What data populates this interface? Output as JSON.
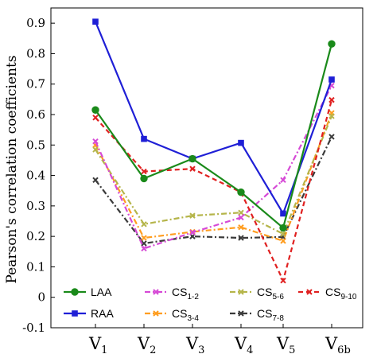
{
  "chart_data": {
    "type": "line",
    "ylabel": "Pearson's correlation coefficients",
    "xlabel": "",
    "categories": [
      {
        "main": "V",
        "sub": "1"
      },
      {
        "main": "V",
        "sub": "2"
      },
      {
        "main": "V",
        "sub": "3"
      },
      {
        "main": "V",
        "sub": "4"
      },
      {
        "main": "V",
        "sub": "5"
      },
      {
        "main": "V",
        "sub": "6b"
      }
    ],
    "ylim": [
      -0.1,
      0.95
    ],
    "yticks": [
      "-0.1",
      "0",
      "0.1",
      "0.2",
      "0.3",
      "0.4",
      "0.5",
      "0.6",
      "0.7",
      "0.8",
      "0.9"
    ],
    "grid": false,
    "legend_position": "bottom",
    "series": [
      {
        "name": "LAA",
        "name_main": "LAA",
        "name_sub": "",
        "color": "#1a8a1a",
        "dash": "solid",
        "marker": "circle",
        "values": [
          0.615,
          0.39,
          0.455,
          0.345,
          0.228,
          0.832
        ]
      },
      {
        "name": "RAA",
        "name_main": "RAA",
        "name_sub": "",
        "color": "#1f1fd6",
        "dash": "solid",
        "marker": "square",
        "values": [
          0.905,
          0.52,
          0.455,
          0.507,
          0.275,
          0.715
        ]
      },
      {
        "name": "CS1-2",
        "name_main": "CS",
        "name_sub": "1-2",
        "color": "#d64ad6",
        "dash": "dashdot",
        "marker": "x",
        "values": [
          0.512,
          0.16,
          0.213,
          0.262,
          0.385,
          0.695
        ]
      },
      {
        "name": "CS3-4",
        "name_main": "CS",
        "name_sub": "3-4",
        "color": "#ff9d1f",
        "dash": "dashdot",
        "marker": "x",
        "values": [
          0.5,
          0.195,
          0.215,
          0.23,
          0.185,
          0.605
        ]
      },
      {
        "name": "CS5-6",
        "name_main": "CS",
        "name_sub": "5-6",
        "color": "#b5b54a",
        "dash": "dashdot",
        "marker": "x",
        "values": [
          0.485,
          0.24,
          0.268,
          0.278,
          0.208,
          0.595
        ]
      },
      {
        "name": "CS7-8",
        "name_main": "CS",
        "name_sub": "7-8",
        "color": "#3a3a3a",
        "dash": "dashdot",
        "marker": "x",
        "values": [
          0.385,
          0.177,
          0.2,
          0.195,
          0.198,
          0.527
        ]
      },
      {
        "name": "CS9-10",
        "name_main": "CS",
        "name_sub": "9-10",
        "color": "#e02020",
        "dash": "dashed",
        "marker": "x",
        "values": [
          0.59,
          0.413,
          0.422,
          0.345,
          0.055,
          0.648
        ]
      }
    ],
    "legend_order": [
      "LAA",
      "CS1-2",
      "CS5-6",
      "CS9-10",
      "RAA",
      "CS3-4",
      "CS7-8"
    ]
  }
}
